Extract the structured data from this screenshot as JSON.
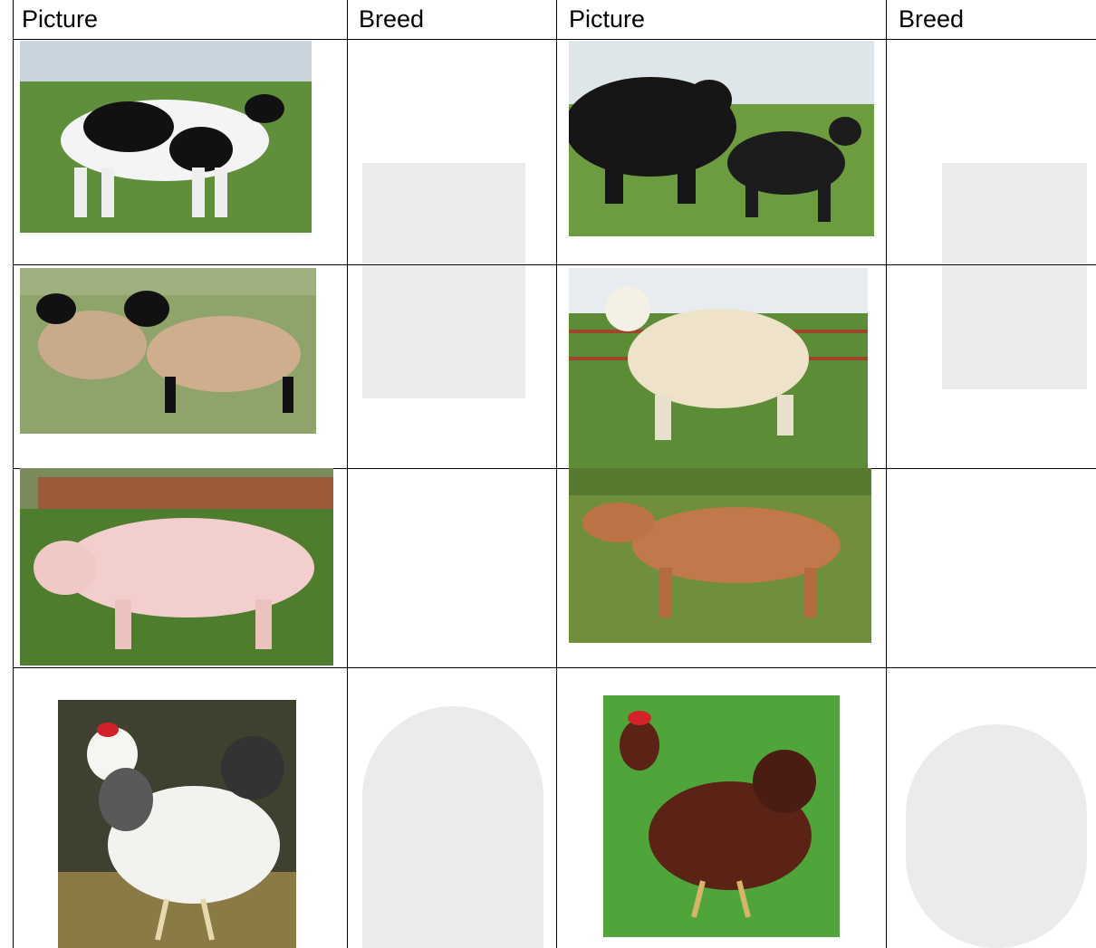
{
  "table": {
    "header": [
      "Picture",
      "Breed",
      "Picture",
      "Breed"
    ]
  }
}
